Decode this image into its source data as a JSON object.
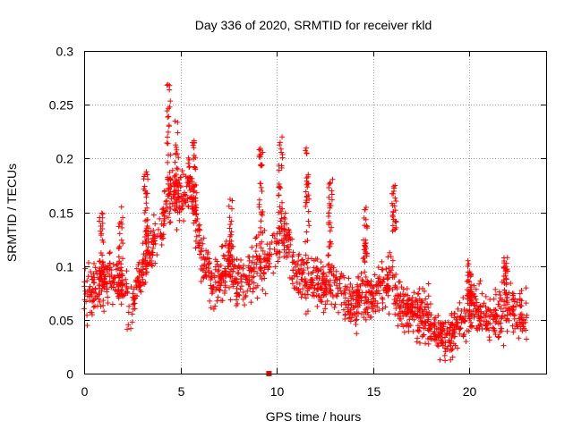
{
  "chart_data": {
    "type": "scatter",
    "title": "Day 336 of 2020, SRMTID for receiver rkld",
    "xlabel": "GPS time / hours",
    "ylabel": "SRMTID / TECUs",
    "xlim": [
      0,
      24
    ],
    "ylim": [
      0,
      0.3
    ],
    "x_ticks": [
      0,
      5,
      10,
      15,
      20
    ],
    "x_tick_labels": [
      "0",
      "5",
      "10",
      "15",
      "20"
    ],
    "y_ticks": [
      0,
      0.05,
      0.1,
      0.15,
      0.2,
      0.25,
      0.3
    ],
    "y_tick_labels": [
      "0",
      "0.05",
      "0.1",
      "0.15",
      "0.2",
      "0.25",
      "0.3"
    ],
    "grid": true,
    "marker": "+",
    "series_color": "#ff0000",
    "special_points": [
      {
        "x": 9.6,
        "y": 0.0,
        "marker": "square"
      }
    ],
    "trend_profile": [
      {
        "x": 0.0,
        "y": 0.075
      },
      {
        "x": 0.5,
        "y": 0.08
      },
      {
        "x": 1.0,
        "y": 0.085
      },
      {
        "x": 1.5,
        "y": 0.09
      },
      {
        "x": 2.0,
        "y": 0.085
      },
      {
        "x": 2.5,
        "y": 0.06
      },
      {
        "x": 3.0,
        "y": 0.1
      },
      {
        "x": 3.5,
        "y": 0.115
      },
      {
        "x": 4.0,
        "y": 0.13
      },
      {
        "x": 4.5,
        "y": 0.18
      },
      {
        "x": 5.0,
        "y": 0.16
      },
      {
        "x": 5.5,
        "y": 0.18
      },
      {
        "x": 6.0,
        "y": 0.12
      },
      {
        "x": 6.5,
        "y": 0.09
      },
      {
        "x": 7.0,
        "y": 0.085
      },
      {
        "x": 7.5,
        "y": 0.1
      },
      {
        "x": 8.0,
        "y": 0.085
      },
      {
        "x": 8.5,
        "y": 0.09
      },
      {
        "x": 9.0,
        "y": 0.1
      },
      {
        "x": 9.5,
        "y": 0.1
      },
      {
        "x": 10.0,
        "y": 0.12
      },
      {
        "x": 10.5,
        "y": 0.13
      },
      {
        "x": 11.0,
        "y": 0.09
      },
      {
        "x": 11.5,
        "y": 0.085
      },
      {
        "x": 12.0,
        "y": 0.09
      },
      {
        "x": 12.5,
        "y": 0.08
      },
      {
        "x": 13.0,
        "y": 0.085
      },
      {
        "x": 13.5,
        "y": 0.07
      },
      {
        "x": 14.0,
        "y": 0.065
      },
      {
        "x": 14.5,
        "y": 0.075
      },
      {
        "x": 15.0,
        "y": 0.07
      },
      {
        "x": 15.5,
        "y": 0.08
      },
      {
        "x": 16.0,
        "y": 0.09
      },
      {
        "x": 16.5,
        "y": 0.06
      },
      {
        "x": 17.0,
        "y": 0.055
      },
      {
        "x": 17.5,
        "y": 0.055
      },
      {
        "x": 18.0,
        "y": 0.05
      },
      {
        "x": 18.5,
        "y": 0.035
      },
      {
        "x": 19.0,
        "y": 0.035
      },
      {
        "x": 19.5,
        "y": 0.045
      },
      {
        "x": 20.0,
        "y": 0.06
      },
      {
        "x": 20.5,
        "y": 0.055
      },
      {
        "x": 21.0,
        "y": 0.055
      },
      {
        "x": 21.5,
        "y": 0.055
      },
      {
        "x": 22.0,
        "y": 0.06
      },
      {
        "x": 22.5,
        "y": 0.055
      },
      {
        "x": 23.0,
        "y": 0.055
      }
    ],
    "spike_events": [
      {
        "x": 0.9,
        "y_min": 0.08,
        "y_max": 0.15
      },
      {
        "x": 1.9,
        "y_min": 0.07,
        "y_max": 0.16
      },
      {
        "x": 3.2,
        "y_min": 0.12,
        "y_max": 0.19
      },
      {
        "x": 4.4,
        "y_min": 0.14,
        "y_max": 0.27
      },
      {
        "x": 4.8,
        "y_min": 0.15,
        "y_max": 0.235
      },
      {
        "x": 5.7,
        "y_min": 0.15,
        "y_max": 0.22
      },
      {
        "x": 7.6,
        "y_min": 0.1,
        "y_max": 0.165
      },
      {
        "x": 9.2,
        "y_min": 0.12,
        "y_max": 0.21
      },
      {
        "x": 10.2,
        "y_min": 0.13,
        "y_max": 0.225
      },
      {
        "x": 11.6,
        "y_min": 0.11,
        "y_max": 0.21
      },
      {
        "x": 12.8,
        "y_min": 0.1,
        "y_max": 0.185
      },
      {
        "x": 14.6,
        "y_min": 0.1,
        "y_max": 0.155
      },
      {
        "x": 16.1,
        "y_min": 0.13,
        "y_max": 0.175
      },
      {
        "x": 20.0,
        "y_min": 0.07,
        "y_max": 0.105
      },
      {
        "x": 21.9,
        "y_min": 0.07,
        "y_max": 0.11
      }
    ],
    "approx_point_count": 1800
  }
}
